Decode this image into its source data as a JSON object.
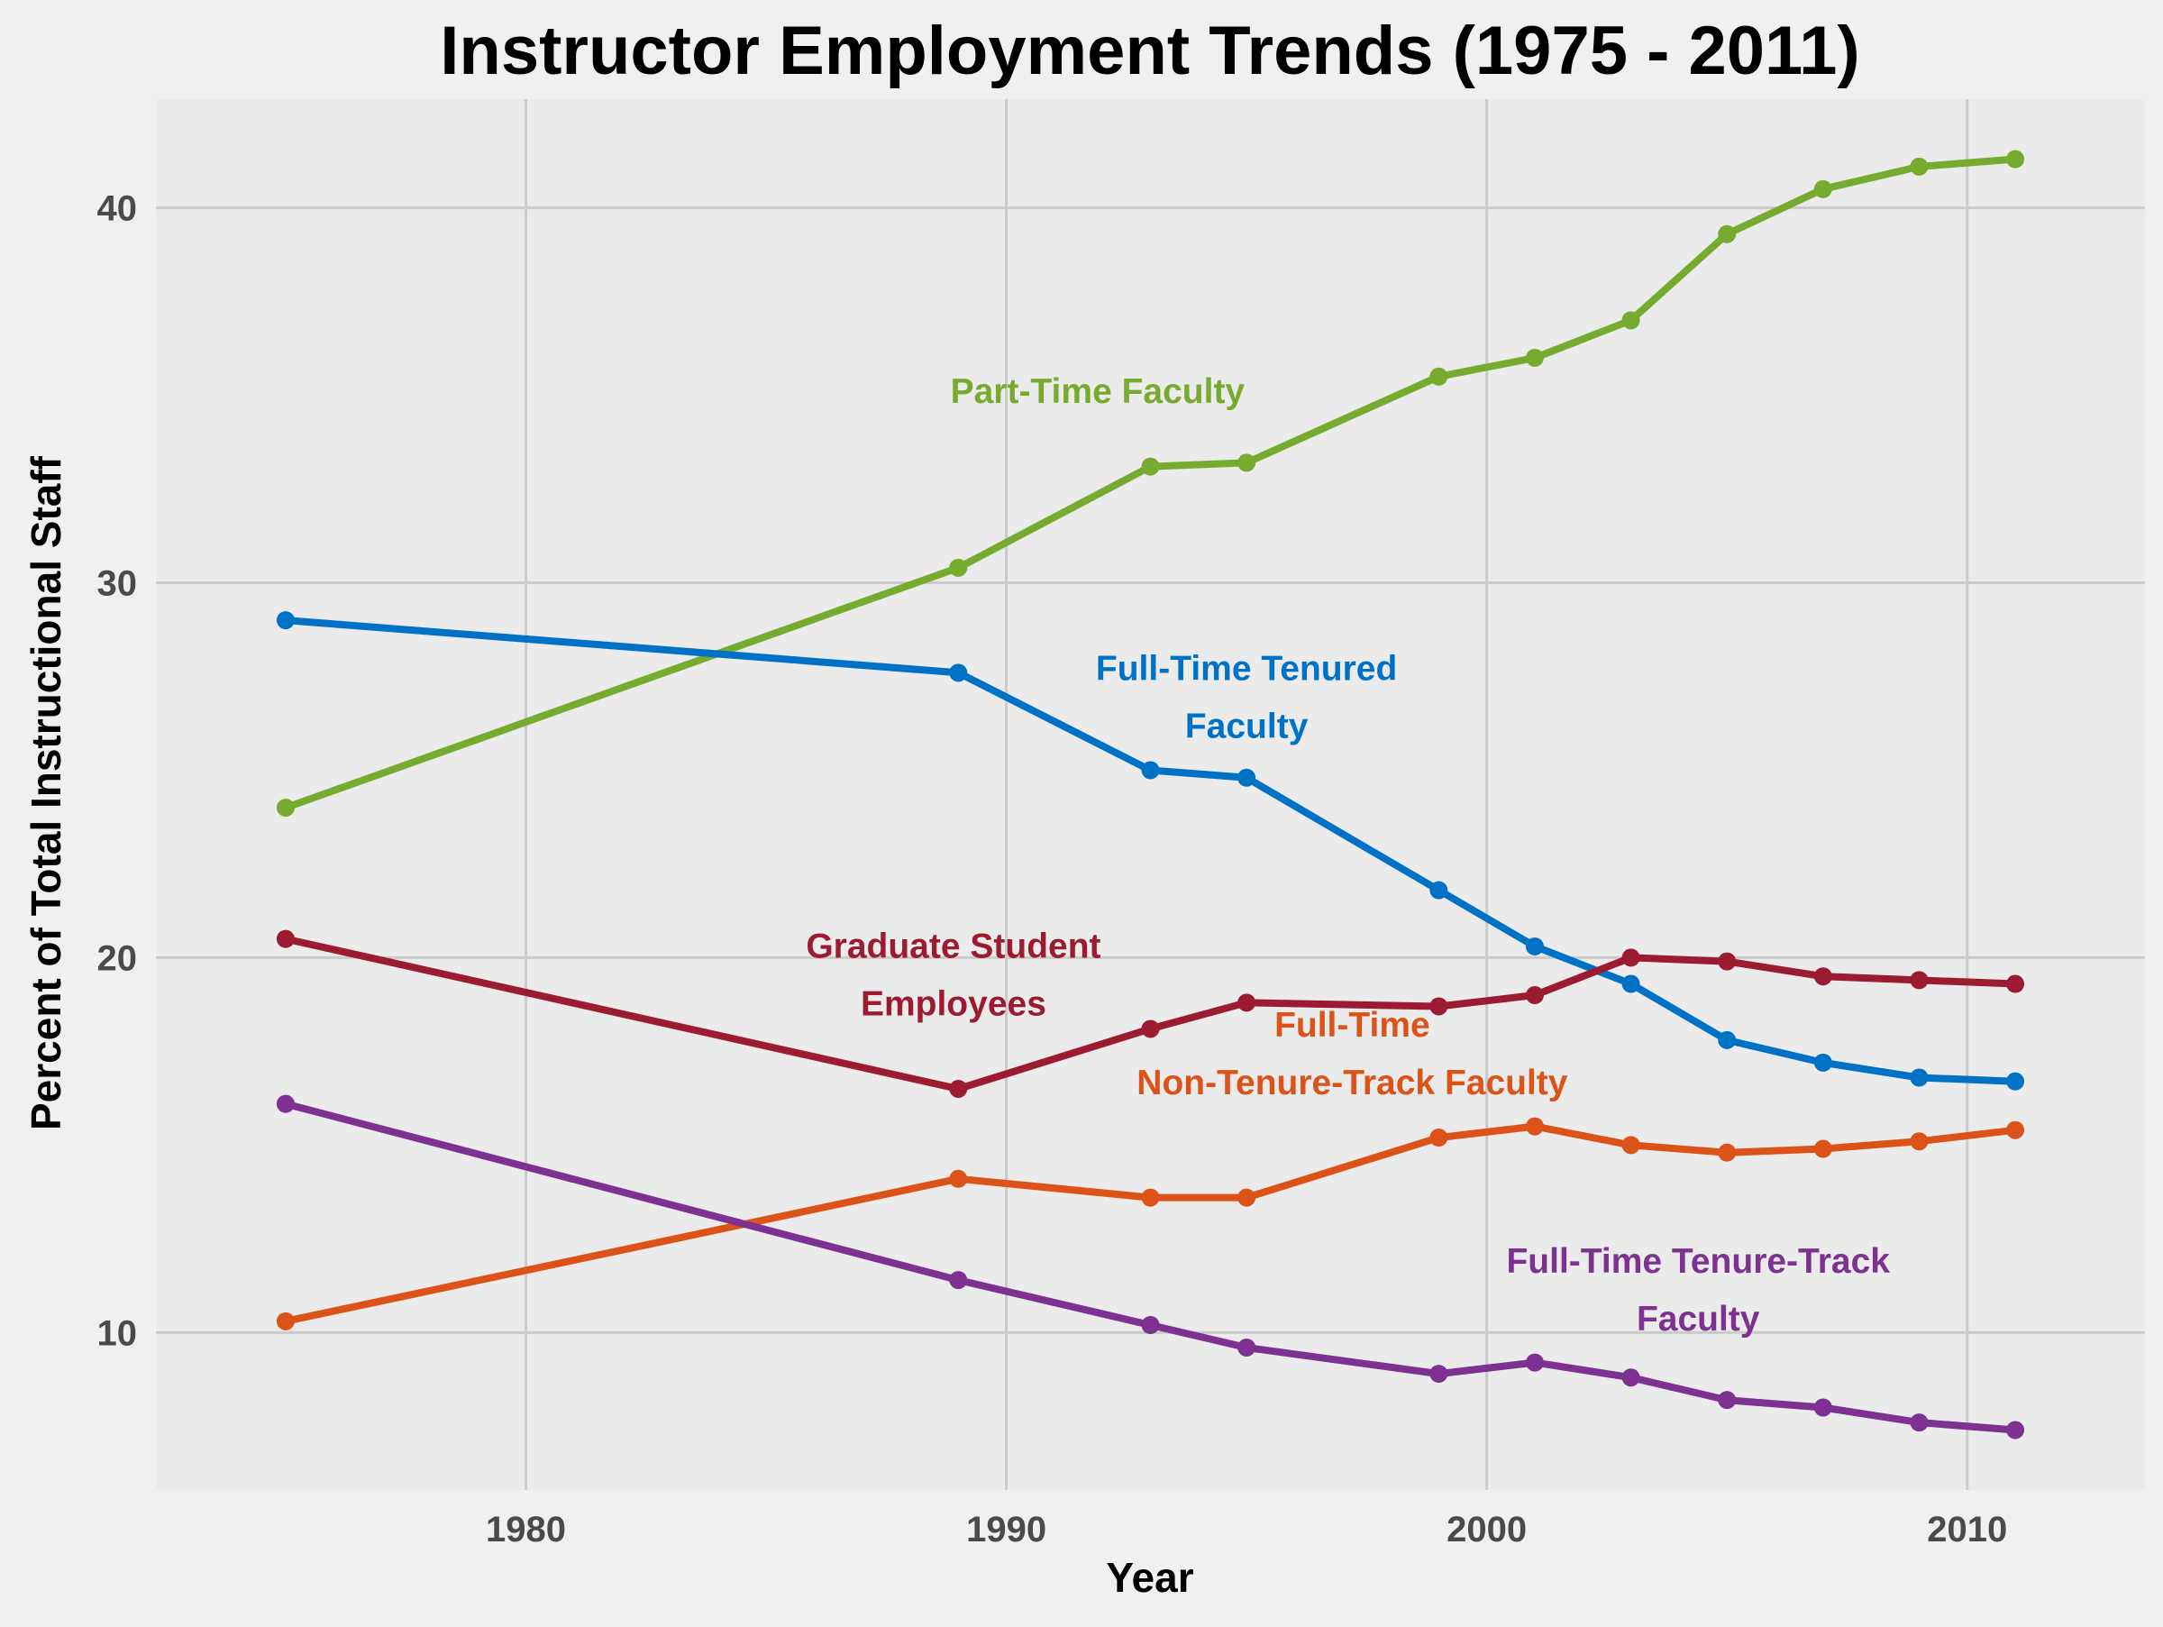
{
  "chart_data": {
    "type": "line",
    "title": "Instructor Employment Trends (1975 - 2011)",
    "xlabel": "Year",
    "ylabel": "Percent of Total Instructional Staff",
    "xlim": [
      1972.3,
      2013.7
    ],
    "ylim": [
      5.8,
      42.9
    ],
    "x_ticks": [
      1980,
      1990,
      2000,
      2010
    ],
    "y_ticks": [
      10,
      20,
      30,
      40
    ],
    "x_tick_labels": [
      "1980",
      "1990",
      "2000",
      "2010"
    ],
    "y_tick_labels": [
      "10",
      "20",
      "30",
      "40"
    ],
    "grid": true,
    "legend": "none",
    "x": [
      1975,
      1989,
      1993,
      1995,
      1999,
      2001,
      2003,
      2005,
      2007,
      2009,
      2011
    ],
    "series": [
      {
        "name": "Part-Time Faculty",
        "color": "#77ab2f",
        "values": [
          24.0,
          30.4,
          33.1,
          33.2,
          35.5,
          36.0,
          37.0,
          39.3,
          40.5,
          41.1,
          41.3
        ],
        "label_lines": [
          "Part-Time Faculty"
        ],
        "label_at": [
          1991.9,
          34.8
        ]
      },
      {
        "name": "Full-Time Tenured Faculty",
        "color": "#0072c6",
        "values": [
          29.0,
          27.6,
          25.0,
          24.8,
          21.8,
          20.3,
          19.3,
          17.8,
          17.2,
          16.8,
          16.7
        ],
        "label_lines": [
          "Full-Time Tenured",
          "Faculty"
        ],
        "label_at": [
          1995.0,
          27.4
        ]
      },
      {
        "name": "Graduate Student Employees",
        "color": "#9b1b30",
        "values": [
          20.5,
          16.5,
          18.1,
          18.8,
          18.7,
          19.0,
          20.0,
          19.9,
          19.5,
          19.4,
          19.3
        ],
        "label_lines": [
          "Graduate Student",
          "Employees"
        ],
        "label_at": [
          1988.9,
          20.0
        ]
      },
      {
        "name": "Full-Time Non-Tenure-Track Faculty",
        "color": "#dc5319",
        "values": [
          10.3,
          14.1,
          13.6,
          13.6,
          15.2,
          15.5,
          15.0,
          14.8,
          14.9,
          15.1,
          15.4
        ],
        "label_lines": [
          "Full-Time",
          "Non-Tenure-Track Faculty"
        ],
        "label_at": [
          1997.2,
          17.9
        ]
      },
      {
        "name": "Full-Time Tenure-Track Faculty",
        "color": "#7d3191",
        "values": [
          16.1,
          11.4,
          10.2,
          9.6,
          8.9,
          9.2,
          8.8,
          8.2,
          8.0,
          7.6,
          7.4
        ],
        "label_lines": [
          "Full-Time Tenure-Track",
          "Faculty"
        ],
        "label_at": [
          2004.4,
          11.6
        ]
      }
    ],
    "colors": {
      "figure_background": "#f0f0f0",
      "plot_background": "#ebebeb",
      "grid": "#cbcbcb",
      "tick_text": "#4a4a4a"
    }
  }
}
